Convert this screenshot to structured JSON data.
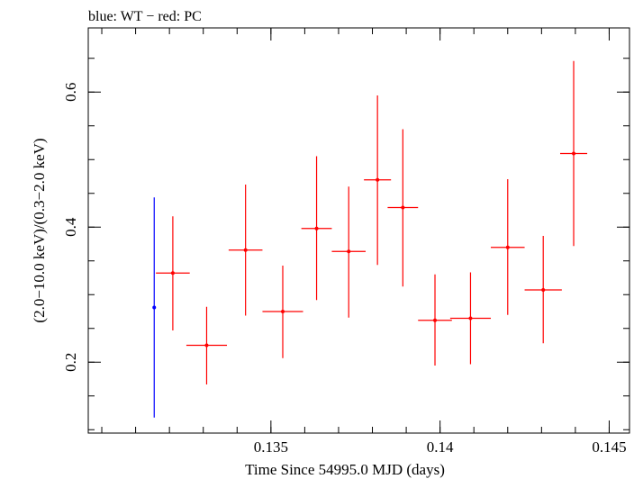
{
  "chart_data": {
    "type": "scatter",
    "title": "blue: WT − red: PC",
    "xlabel": "Time Since 54995.0 MJD (days)",
    "ylabel": "(2.0−10.0 keV)/(0.3−2.0 keV)",
    "xlim": [
      0.1296,
      0.1456
    ],
    "ylim": [
      0.095,
      0.695
    ],
    "xticks": [
      {
        "value": 0.135,
        "label": "0.135"
      },
      {
        "value": 0.14,
        "label": "0.14"
      },
      {
        "value": 0.145,
        "label": "0.145"
      }
    ],
    "yticks": [
      {
        "value": 0.2,
        "label": "0.2"
      },
      {
        "value": 0.4,
        "label": "0.4"
      },
      {
        "value": 0.6,
        "label": "0.6"
      }
    ],
    "x_minor_step": 0.001,
    "y_minor_step": 0.05,
    "series": [
      {
        "name": "WT",
        "color": "#0000ff",
        "points": [
          {
            "x": 0.13155,
            "y": 0.281,
            "xerr": 0.0,
            "ylo": 0.118,
            "yhi": 0.444
          }
        ]
      },
      {
        "name": "PC",
        "color": "#ff0000",
        "points": [
          {
            "x": 0.1321,
            "y": 0.332,
            "xerr": 0.0005,
            "ylo": 0.247,
            "yhi": 0.416
          },
          {
            "x": 0.1331,
            "y": 0.225,
            "xerr": 0.0006,
            "ylo": 0.167,
            "yhi": 0.282
          },
          {
            "x": 0.13425,
            "y": 0.366,
            "xerr": 0.0005,
            "ylo": 0.269,
            "yhi": 0.463
          },
          {
            "x": 0.13535,
            "y": 0.275,
            "xerr": 0.0006,
            "ylo": 0.206,
            "yhi": 0.343
          },
          {
            "x": 0.13635,
            "y": 0.398,
            "xerr": 0.00045,
            "ylo": 0.292,
            "yhi": 0.505
          },
          {
            "x": 0.1373,
            "y": 0.364,
            "xerr": 0.0005,
            "ylo": 0.266,
            "yhi": 0.46
          },
          {
            "x": 0.13815,
            "y": 0.47,
            "xerr": 0.0004,
            "ylo": 0.344,
            "yhi": 0.595
          },
          {
            "x": 0.1389,
            "y": 0.429,
            "xerr": 0.00045,
            "ylo": 0.312,
            "yhi": 0.545
          },
          {
            "x": 0.13985,
            "y": 0.262,
            "xerr": 0.0005,
            "ylo": 0.195,
            "yhi": 0.33
          },
          {
            "x": 0.1409,
            "y": 0.265,
            "xerr": 0.0006,
            "ylo": 0.197,
            "yhi": 0.333
          },
          {
            "x": 0.142,
            "y": 0.37,
            "xerr": 0.0005,
            "ylo": 0.27,
            "yhi": 0.471
          },
          {
            "x": 0.14305,
            "y": 0.307,
            "xerr": 0.00055,
            "ylo": 0.228,
            "yhi": 0.387
          },
          {
            "x": 0.14395,
            "y": 0.509,
            "xerr": 0.0004,
            "ylo": 0.372,
            "yhi": 0.646
          }
        ]
      }
    ],
    "grid": false,
    "legend": "none"
  }
}
